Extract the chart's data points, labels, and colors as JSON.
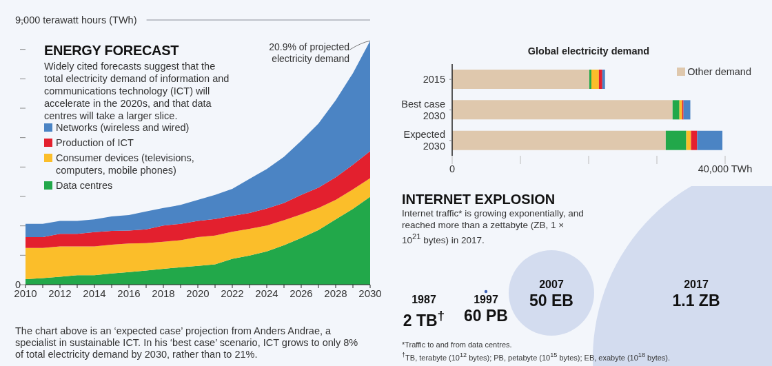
{
  "chart_data": [
    {
      "type": "area",
      "stacked": true,
      "title": "ENERGY FORECAST",
      "subtitle": "Widely cited forecasts suggest that the total electricity demand of information and communications technology (ICT) will accelerate in the 2020s, and that data centres will take a larger slice.",
      "legend": "left",
      "x": [
        2010,
        2011,
        2012,
        2013,
        2014,
        2015,
        2016,
        2017,
        2018,
        2019,
        2020,
        2021,
        2022,
        2023,
        2024,
        2025,
        2026,
        2027,
        2028,
        2029,
        2030
      ],
      "xlim": [
        2010,
        2030
      ],
      "xticks": [
        2010,
        {
          "value": 2011,
          "label": null
        },
        2012,
        {
          "value": 2013,
          "label": null
        },
        2014,
        {
          "value": 2015,
          "label": null
        },
        2016,
        {
          "value": 2017,
          "label": null
        },
        2018,
        {
          "value": 2019,
          "label": null
        },
        2020,
        {
          "value": 2021,
          "label": null
        },
        2022,
        {
          "value": 2023,
          "label": null
        },
        2024,
        {
          "value": 2025,
          "label": null
        },
        2026,
        {
          "value": 2027,
          "label": null
        },
        2028,
        {
          "value": 2029,
          "label": null
        },
        2030
      ],
      "ylim": [
        0,
        9000
      ],
      "yticks": [
        0,
        {
          "value": 1000,
          "label": null
        },
        {
          "value": 2000,
          "label": null
        },
        {
          "value": 3000,
          "label": null
        },
        {
          "value": 4000,
          "label": null
        },
        {
          "value": 5000,
          "label": null
        },
        {
          "value": 6000,
          "label": null
        },
        {
          "value": 7000,
          "label": null
        },
        {
          "value": 8000,
          "label": null
        },
        {
          "value": 9000,
          "label": "9,000 terawatt hours (TWh)"
        }
      ],
      "series": [
        {
          "name": "Data centres",
          "color": "#22a84a",
          "values": [
            190,
            220,
            270,
            320,
            320,
            380,
            430,
            480,
            540,
            590,
            640,
            690,
            880,
            990,
            1130,
            1340,
            1590,
            1860,
            2220,
            2580,
            2990
          ]
        },
        {
          "name": "Consumer devices (televisions, computers, mobile phones)",
          "color": "#fbbe2a",
          "values": [
            1060,
            1030,
            1030,
            980,
            980,
            980,
            970,
            930,
            920,
            920,
            980,
            980,
            920,
            910,
            880,
            850,
            800,
            750,
            660,
            660,
            630
          ]
        },
        {
          "name": "Production of ICT",
          "color": "#e3202e",
          "values": [
            370,
            370,
            430,
            430,
            490,
            470,
            440,
            470,
            550,
            560,
            550,
            560,
            540,
            540,
            580,
            590,
            660,
            690,
            770,
            840,
            920
          ]
        },
        {
          "name": "Networks (wireless and wired)",
          "color": "#4b84c4",
          "values": [
            450,
            450,
            440,
            440,
            430,
            490,
            530,
            610,
            600,
            640,
            710,
            820,
            920,
            1160,
            1340,
            1570,
            1840,
            2180,
            2620,
            3110,
            3750
          ]
        }
      ],
      "annotations": [
        {
          "text": "20.9% of projected electricity demand",
          "x": 2030,
          "y": 8290
        },
        "The chart above is an ‘expected case’ projection from Anders Andrae, a specialist in sustainable ICT. In his ‘best case’ scenario, ICT grows to only 8% of total electricity demand by 2030, rather than to 21%."
      ]
    },
    {
      "type": "bar",
      "orientation": "horizontal",
      "stacked": true,
      "title": "Global electricity demand",
      "legend": "top right",
      "categories": [
        "2015",
        "Best case\n2030",
        "Expected\n2030"
      ],
      "xlim": [
        0,
        40000
      ],
      "xticks": [
        0,
        {
          "value": 10000,
          "label": null
        },
        {
          "value": 20000,
          "label": null
        },
        {
          "value": 30000,
          "label": null
        },
        {
          "value": 40000,
          "label": "40,000 TWh"
        }
      ],
      "series": [
        {
          "name": "Other demand",
          "color": "#dfc8ad",
          "values": [
            20100,
            32300,
            31300
          ]
        },
        {
          "color": "#22a84a",
          "values": [
            300,
            1000,
            3000
          ]
        },
        {
          "color": "#fbbe2a",
          "values": [
            1100,
            400,
            700
          ]
        },
        {
          "color": "#e3202e",
          "values": [
            500,
            200,
            900
          ]
        },
        {
          "color": "#4b84c4",
          "values": [
            400,
            1000,
            3700
          ]
        }
      ]
    },
    {
      "type": "other",
      "title": "INTERNET EXPLOSION",
      "subtitle": "Internet traffic* is growing exponentially, and reached more than a zettabyte (ZB, 1 × 10$^{21}$ bytes) in 2017.",
      "categories": [
        "1987",
        "1997",
        "2007",
        "2017"
      ],
      "value_labels": [
        "2 TB$^{†}$",
        "60 PB",
        "50 EB",
        "1.1 ZB"
      ],
      "colors": [
        "#d3dcef",
        "#3f63b5",
        "#d3dcef",
        "#d3dcef"
      ],
      "annotations": [
        "*Traffic to and from data centres.",
        "$^{†}$TB, terabyte (10$^{12}$ bytes); PB, petabyte (10$^{15}$ bytes); EB, exabyte (10$^{18}$ bytes)."
      ]
    }
  ]
}
